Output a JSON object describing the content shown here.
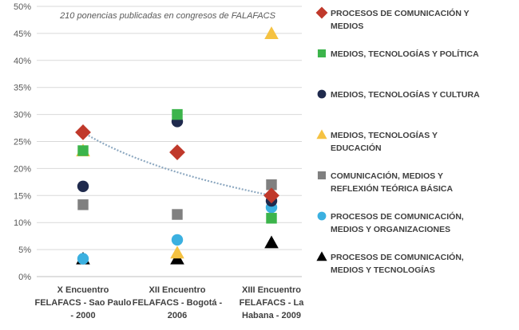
{
  "chart_data": {
    "type": "scatter",
    "subtitle": "210 ponencias publicadas en congresos de FALAFACS",
    "categories": [
      [
        "X Encuentro",
        "FELAFACS - Sao Paulo",
        "- 2000"
      ],
      [
        "XII Encuentro",
        "FELAFACS - Bogotá -",
        "2006"
      ],
      [
        "XIII Encuentro",
        "FELAFACS - La",
        "Habana - 2009"
      ]
    ],
    "y_ticks": [
      "0%",
      "5%",
      "10%",
      "15%",
      "20%",
      "25%",
      "30%",
      "35%",
      "40%",
      "45%",
      "50%"
    ],
    "ylim": [
      0,
      50
    ],
    "y_unit": "%",
    "grid": true,
    "legend_position": "right",
    "series": [
      {
        "name": [
          "PROCESOS DE COMUNICACIÓN Y",
          "MEDIOS"
        ],
        "marker": "diamond",
        "color": "#C0392B",
        "values": [
          26.7,
          23.0,
          15.0
        ]
      },
      {
        "name": [
          "MEDIOS, TECNOLOGÍAS Y POLÍTICA"
        ],
        "marker": "square",
        "color": "#3CB44B",
        "values": [
          23.3,
          30.0,
          10.8
        ]
      },
      {
        "name": [
          "MEDIOS, TECNOLOGÍAS Y CULTURA"
        ],
        "marker": "circle",
        "color": "#1F2A4D",
        "values": [
          16.7,
          28.7,
          14.0
        ]
      },
      {
        "name": [
          "MEDIOS, TECNOLOGÍAS Y",
          "EDUCACIÓN"
        ],
        "marker": "triangle",
        "color": "#F5C242",
        "values": [
          23.3,
          4.4,
          45.0
        ]
      },
      {
        "name": [
          "COMUNICACIÓN, MEDIOS Y",
          "REFLEXIÓN TEÓRICA BÁSICA"
        ],
        "marker": "square",
        "color": "#808080",
        "values": [
          13.3,
          11.5,
          17.0
        ]
      },
      {
        "name": [
          "PROCESOS DE COMUNICACIÓN,",
          "MEDIOS Y ORGANIZACIONES"
        ],
        "marker": "circle",
        "color": "#3BB0E0",
        "values": [
          3.3,
          6.8,
          12.8
        ]
      },
      {
        "name": [
          "PROCESOS DE COMUNICACIÓN,",
          "MEDIOS Y TECNOLOGÍAS"
        ],
        "marker": "triangle",
        "color": "#000000",
        "values": [
          3.3,
          3.3,
          6.3
        ]
      }
    ],
    "trendline": {
      "series_index": 0,
      "style": "dotted",
      "color": "#8EA9C1"
    }
  }
}
